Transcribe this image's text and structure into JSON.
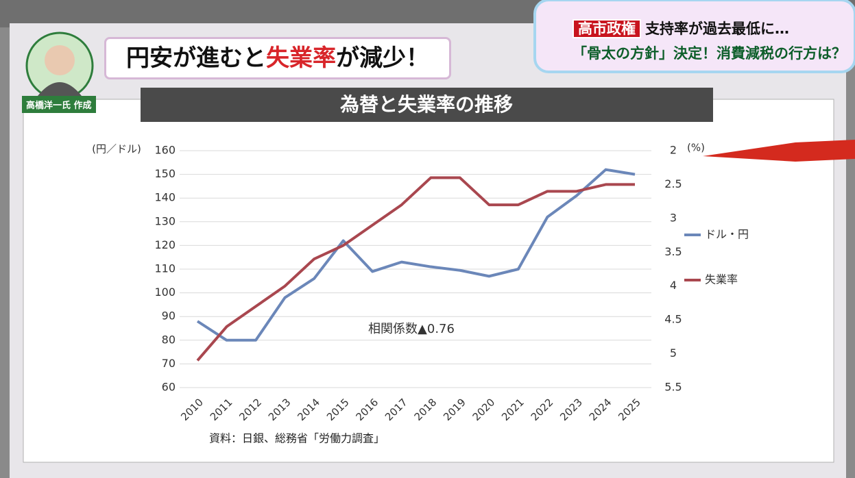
{
  "header": {
    "headline": [
      "円安が進むと",
      "失業率",
      "が減少！"
    ],
    "author": "高橋洋一氏 作成",
    "ticker_tag": "高市政権",
    "ticker_line1": "支持率が過去最低に…",
    "ticker_line2": "「骨太の方針」決定！消費減税の行方は？"
  },
  "chart_data": {
    "type": "line",
    "title": "為替と失業率の推移",
    "y_label": "(円／ドル)",
    "y2_label": "(%)",
    "categories": [
      "2010",
      "2011",
      "2012",
      "2013",
      "2014",
      "2015",
      "2016",
      "2017",
      "2018",
      "2019",
      "2020",
      "2021",
      "2022",
      "2023",
      "2024",
      "2025"
    ],
    "series": [
      {
        "name": "ドル・円",
        "color": "#6b87b9",
        "values": [
          88,
          80,
          80,
          98,
          106,
          122,
          109,
          113,
          111,
          109.5,
          107,
          110,
          132,
          141,
          152,
          150
        ]
      },
      {
        "name": "失業率",
        "color": "#a9474f",
        "axis": "y2",
        "values": [
          5.1,
          4.6,
          4.3,
          4.0,
          3.6,
          3.4,
          3.1,
          2.8,
          2.4,
          2.4,
          2.8,
          2.8,
          2.6,
          2.6,
          2.5,
          2.5
        ]
      }
    ],
    "ylim": [
      60,
      160
    ],
    "yticks": [
      60,
      70,
      80,
      90,
      100,
      110,
      120,
      130,
      140,
      150,
      160
    ],
    "y2lim": [
      5.5,
      2
    ],
    "y2ticks": [
      2,
      2.5,
      3,
      3.5,
      4,
      4.5,
      5,
      5.5
    ],
    "grid": true,
    "annotation": "相関係数▲0.76",
    "source": "資料：日銀、総務省「労働力調査」"
  }
}
